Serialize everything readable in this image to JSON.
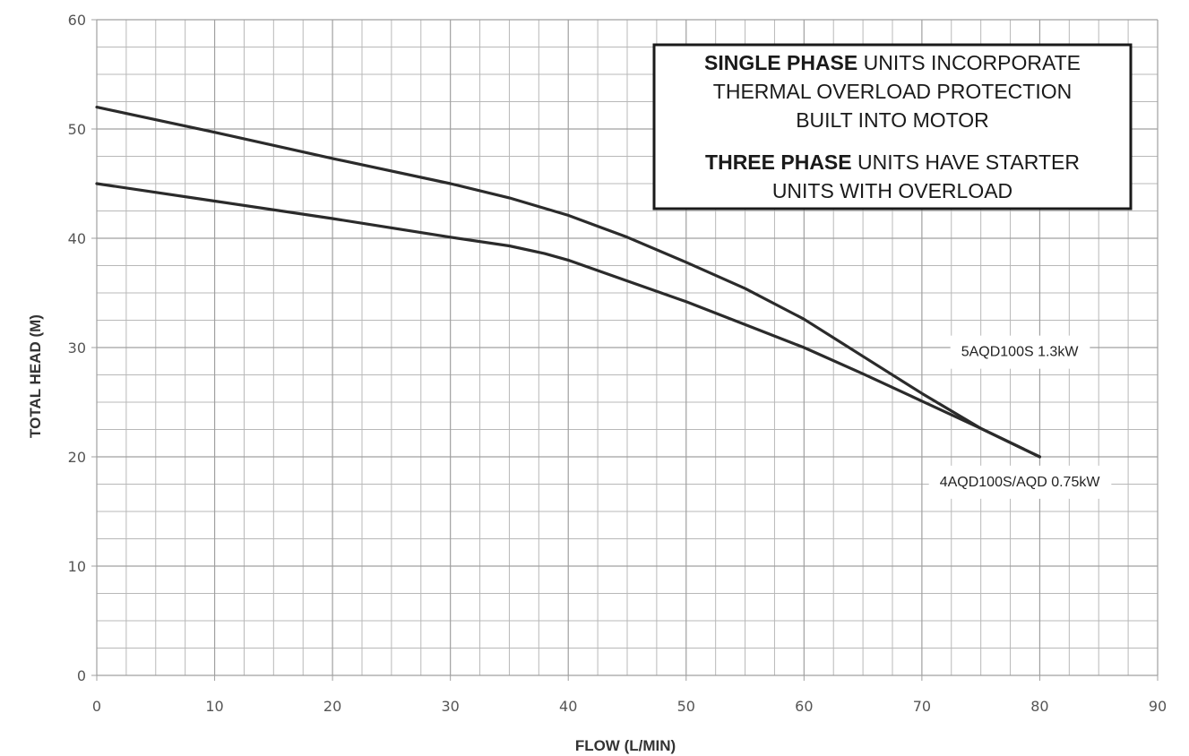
{
  "chart_data": {
    "type": "line",
    "xlabel": "FLOW (L/MIN)",
    "ylabel": "TOTAL HEAD (M)",
    "xlim": [
      0,
      90
    ],
    "ylim": [
      0,
      60
    ],
    "x_ticks": [
      0,
      10,
      20,
      30,
      40,
      50,
      60,
      70,
      80,
      90
    ],
    "y_ticks": [
      0,
      10,
      20,
      30,
      40,
      50,
      60
    ],
    "grid": true,
    "minor_grid_per_major": 4,
    "line_color": "#2b2b2b",
    "series": [
      {
        "name": "5AQD100S 1.3kW",
        "x": [
          0,
          10,
          20,
          30,
          35,
          40,
          45,
          50,
          55,
          60,
          65,
          70,
          75,
          80
        ],
        "y": [
          52,
          49.7,
          47.3,
          45,
          43.7,
          42.1,
          40.1,
          37.8,
          35.4,
          32.6,
          29.2,
          25.8,
          22.6,
          20
        ]
      },
      {
        "name": "4AQD100S/AQD 0.75kW",
        "x": [
          0,
          10,
          20,
          30,
          35,
          38,
          40,
          45,
          50,
          55,
          60,
          65,
          70,
          75,
          80
        ],
        "y": [
          45,
          43.4,
          41.8,
          40.1,
          39.3,
          38.6,
          38,
          36.1,
          34.2,
          32.1,
          30,
          27.6,
          25.1,
          22.6,
          20
        ]
      }
    ],
    "series_labels": [
      {
        "text": "5AQD100S 1.3kW",
        "x": 78.3,
        "y": 29.7
      },
      {
        "text": "4AQD100S/AQD 0.75kW",
        "x": 78.3,
        "y": 17.8
      }
    ],
    "annotation": {
      "lines": [
        [
          {
            "text": "SINGLE PHASE",
            "bold": true
          },
          {
            "text": " UNITS INCORPORATE",
            "bold": false
          }
        ],
        [
          {
            "text": "THERMAL OVERLOAD PROTECTION",
            "bold": false
          }
        ],
        [
          {
            "text": "BUILT INTO MOTOR",
            "bold": false
          }
        ],
        [
          {
            "text": "THREE PHASE",
            "bold": true
          },
          {
            "text": " UNITS HAVE STARTER",
            "bold": false
          }
        ],
        [
          {
            "text": "UNITS WITH OVERLOAD",
            "bold": false
          }
        ]
      ]
    }
  }
}
